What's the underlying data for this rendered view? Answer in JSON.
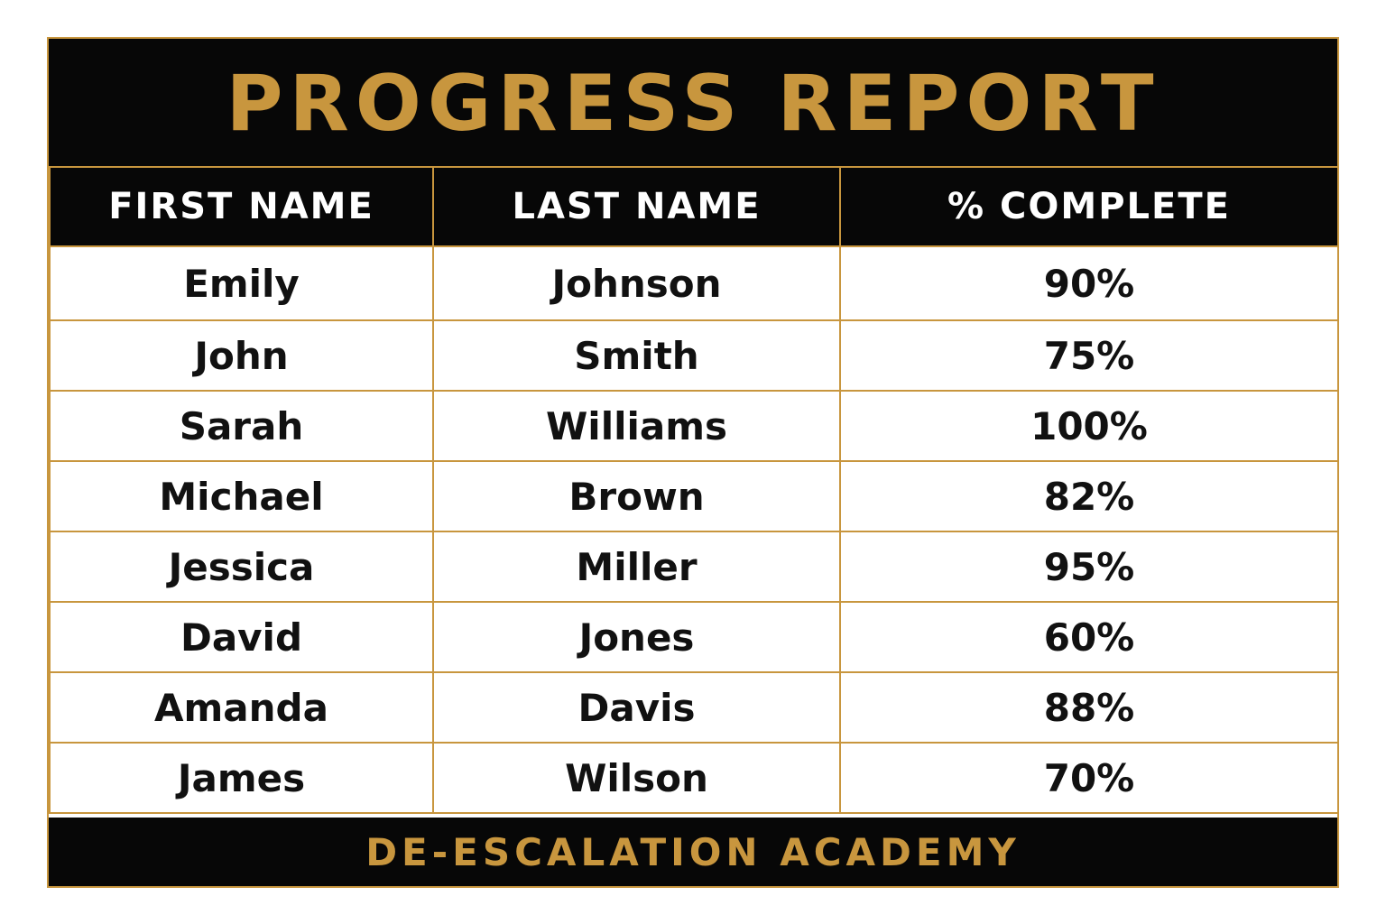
{
  "title": "PROGRESS REPORT",
  "columns": [
    "FIRST NAME",
    "LAST NAME",
    "% COMPLETE"
  ],
  "rows": [
    {
      "first": "Emily",
      "last": "Johnson",
      "complete": "90%"
    },
    {
      "first": "John",
      "last": "Smith",
      "complete": "75%"
    },
    {
      "first": "Sarah",
      "last": "Williams",
      "complete": "100%"
    },
    {
      "first": "Michael",
      "last": "Brown",
      "complete": "82%"
    },
    {
      "first": "Jessica",
      "last": "Miller",
      "complete": "95%"
    },
    {
      "first": "David",
      "last": "Jones",
      "complete": "60%"
    },
    {
      "first": "Amanda",
      "last": "Davis",
      "complete": "88%"
    },
    {
      "first": "James",
      "last": "Wilson",
      "complete": "70%"
    }
  ],
  "footer": "DE-ESCALATION ACADEMY",
  "colors": {
    "gold": "#c8963e",
    "black": "#070707",
    "white": "#ffffff"
  }
}
